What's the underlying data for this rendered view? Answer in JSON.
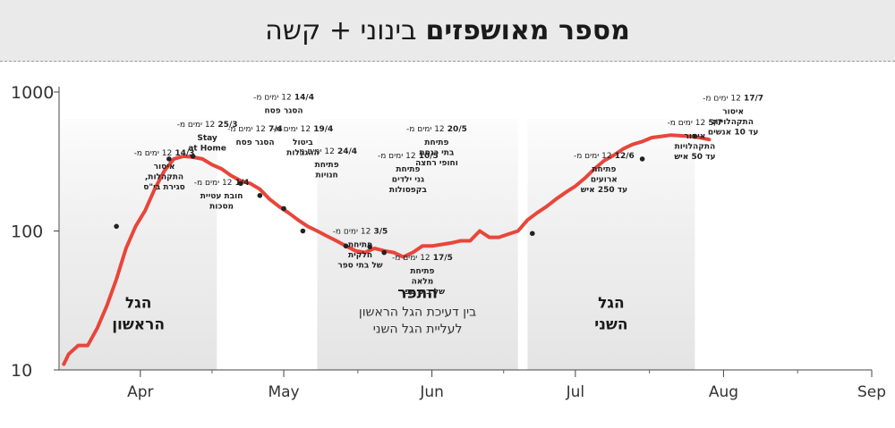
{
  "header": {
    "title_bold": "מספר מאושפזים",
    "title_rest": "בינוני + קשה"
  },
  "chart_data": {
    "type": "line",
    "title": "מספר מאושפזים בינוני + קשה",
    "xlabel": "",
    "ylabel": "",
    "y_scale": "log",
    "ylim": [
      10,
      1000
    ],
    "y_ticks": [
      10,
      100,
      1000
    ],
    "y_tick_labels": [
      "10",
      "100",
      "1000"
    ],
    "xlim": [
      "2020-03-15",
      "2020-09-01"
    ],
    "x_ticks": [
      "2020-04-01",
      "2020-05-01",
      "2020-06-01",
      "2020-07-01",
      "2020-08-01",
      "2020-09-01"
    ],
    "x_tick_labels": [
      "Apr",
      "May",
      "Jun",
      "Jul",
      "Aug",
      "Sep"
    ],
    "grid": false,
    "line_color": "#e8463b",
    "marker_color": "#222222",
    "series": [
      {
        "name": "",
        "x": [
          "2020-03-16",
          "2020-03-17",
          "2020-03-19",
          "2020-03-21",
          "2020-03-23",
          "2020-03-25",
          "2020-03-27",
          "2020-03-29",
          "2020-03-31",
          "2020-04-02",
          "2020-04-04",
          "2020-04-06",
          "2020-04-08",
          "2020-04-10",
          "2020-04-12",
          "2020-04-14",
          "2020-04-16",
          "2020-04-18",
          "2020-04-20",
          "2020-04-22",
          "2020-04-24",
          "2020-04-26",
          "2020-04-28",
          "2020-04-30",
          "2020-05-02",
          "2020-05-04",
          "2020-05-06",
          "2020-05-08",
          "2020-05-10",
          "2020-05-12",
          "2020-05-14",
          "2020-05-16",
          "2020-05-18",
          "2020-05-20",
          "2020-05-22",
          "2020-05-24",
          "2020-05-26",
          "2020-05-28",
          "2020-05-30",
          "2020-06-01",
          "2020-06-03",
          "2020-06-05",
          "2020-06-07",
          "2020-06-09",
          "2020-06-11",
          "2020-06-13",
          "2020-06-15",
          "2020-06-17",
          "2020-06-19",
          "2020-06-21",
          "2020-06-23",
          "2020-06-25",
          "2020-06-27",
          "2020-06-29",
          "2020-07-01",
          "2020-07-03",
          "2020-07-05",
          "2020-07-07",
          "2020-07-09",
          "2020-07-11",
          "2020-07-13",
          "2020-07-15",
          "2020-07-17",
          "2020-07-19",
          "2020-07-21",
          "2020-07-23",
          "2020-07-25",
          "2020-07-27",
          "2020-07-29"
        ],
        "y": [
          11,
          13,
          15,
          15,
          20,
          29,
          45,
          75,
          108,
          140,
          200,
          270,
          330,
          345,
          340,
          330,
          300,
          280,
          250,
          230,
          220,
          200,
          170,
          150,
          135,
          120,
          108,
          100,
          92,
          85,
          78,
          72,
          70,
          75,
          72,
          70,
          65,
          70,
          78,
          78,
          80,
          82,
          85,
          85,
          100,
          90,
          90,
          95,
          100,
          120,
          135,
          150,
          170,
          190,
          210,
          240,
          280,
          320,
          350,
          390,
          420,
          440,
          470,
          480,
          490,
          485,
          480,
          470,
          455
        ],
        "markers": [
          {
            "x": "2020-03-27",
            "y": 108
          },
          {
            "x": "2020-04-07",
            "y": 330
          },
          {
            "x": "2020-04-12",
            "y": 345
          },
          {
            "x": "2020-04-22",
            "y": 220
          },
          {
            "x": "2020-04-26",
            "y": 180
          },
          {
            "x": "2020-05-01",
            "y": 145
          },
          {
            "x": "2020-05-05",
            "y": 100
          },
          {
            "x": "2020-05-14",
            "y": 78
          },
          {
            "x": "2020-05-19",
            "y": 77
          },
          {
            "x": "2020-05-22",
            "y": 70
          },
          {
            "x": "2020-06-22",
            "y": 96
          },
          {
            "x": "2020-07-15",
            "y": 330
          },
          {
            "x": "2020-07-26",
            "y": 480
          }
        ]
      }
    ],
    "shaded_periods": [
      {
        "from": "2020-03-15",
        "to": "2020-04-17",
        "label_lines": [
          "הגל",
          "הראשון"
        ],
        "label_y": 28
      },
      {
        "from": "2020-05-08",
        "to": "2020-06-19",
        "label_lines": [
          "התפר"
        ],
        "sublabel_lines": [
          "בין דעיכת הגל הראשון",
          "לעליית הגל השני"
        ],
        "label_y": 33
      },
      {
        "from": "2020-06-21",
        "to": "2020-07-26",
        "label_lines": [
          "הגל",
          "השני"
        ],
        "label_y": 28
      }
    ],
    "annotations": [
      {
        "x": "2020-04-06",
        "y": 350,
        "date": "14/3",
        "lines": [
          "איסור",
          "התקהלות,",
          "סגירת בי\"ס"
        ]
      },
      {
        "x": "2020-04-15",
        "y": 560,
        "date": "25/3",
        "lines": [
          "Stay",
          "at Home"
        ]
      },
      {
        "x": "2020-04-18",
        "y": 215,
        "date": "1/4",
        "lines": [
          "חובת עטיית",
          "מסכות"
        ]
      },
      {
        "x": "2020-04-25",
        "y": 520,
        "date": "7/4",
        "lines": [
          "הסגר פסח"
        ]
      },
      {
        "x": "2020-05-01",
        "y": 880,
        "date": "14/4",
        "lines": [
          "הסגר פסח"
        ]
      },
      {
        "x": "2020-05-05",
        "y": 520,
        "date": "19/4",
        "lines": [
          "ביטול",
          "ההגבלות"
        ]
      },
      {
        "x": "2020-05-10",
        "y": 360,
        "date": "24/4",
        "lines": [
          "פתיחת",
          "חנויות"
        ]
      },
      {
        "x": "2020-05-17",
        "y": 96,
        "date": "3/5",
        "lines": [
          "פתיחת",
          "חלקית",
          "של בתי ספר"
        ]
      },
      {
        "x": "2020-05-27",
        "y": 335,
        "date": "10/5",
        "lines": [
          "פתיחת",
          "גני ילדים",
          "בקפסולות"
        ]
      },
      {
        "x": "2020-06-02",
        "y": 520,
        "date": "20/5",
        "lines": [
          "פתיחת",
          "בתי כנסת",
          "וחופי רחצה"
        ]
      },
      {
        "x": "2020-05-30",
        "y": 62,
        "date": "17/5",
        "lines": [
          "פתיחת",
          "מלאה",
          "של בתי ספר"
        ]
      },
      {
        "x": "2020-07-07",
        "y": 335,
        "date": "12/6",
        "lines": [
          "פתיחת",
          "ארועים",
          "עד 250 איש"
        ]
      },
      {
        "x": "2020-07-26",
        "y": 580,
        "date": "5/7",
        "lines": [
          "איסור",
          "התקהלויות",
          "עד 50 איש"
        ]
      },
      {
        "x": "2020-08-03",
        "y": 870,
        "date": "17/7",
        "lines": [
          "איסור",
          "התקהלויות",
          "עד 10 אנשים"
        ]
      }
    ],
    "annotation_suffix": "12 ימים מ-"
  }
}
